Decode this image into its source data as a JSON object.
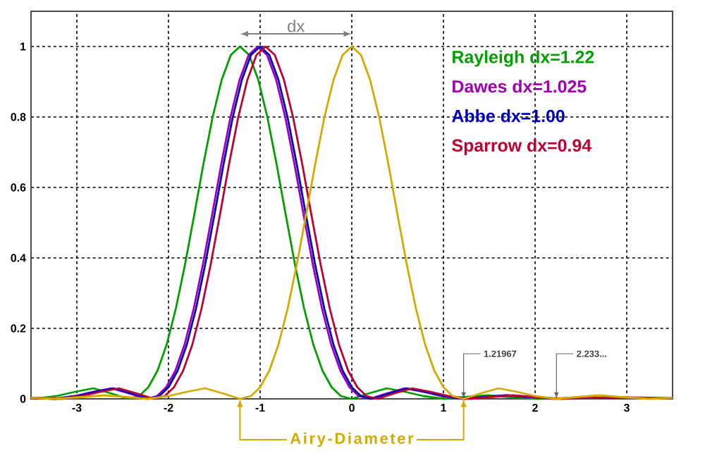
{
  "chart_data": {
    "type": "line",
    "xlim": [
      -3.5,
      3.5
    ],
    "ylim": [
      0,
      1.1
    ],
    "xticks": [
      -3,
      -2,
      -1,
      0,
      1,
      2,
      3
    ],
    "yticks": [
      0,
      0.2,
      0.4,
      0.6,
      0.8,
      1
    ],
    "grid": true,
    "legend": "top right",
    "series": [
      {
        "name": "Rayleigh dx=1.22",
        "color": "#00a000",
        "x": [
          -3.5,
          -3.45,
          -3.22,
          -3.02,
          -2.82,
          -2.62,
          -2.44,
          -2.32,
          -2.22,
          -2.12,
          -2.02,
          -1.92,
          -1.82,
          -1.72,
          -1.62,
          -1.52,
          -1.42,
          -1.32,
          -1.22,
          -1.12,
          -1.02,
          -0.92,
          -0.82,
          -0.72,
          -0.62,
          -0.52,
          -0.42,
          -0.32,
          -0.22,
          -0.12,
          0,
          0.18,
          0.38,
          0.58,
          0.78,
          1.01,
          1.23,
          1.48,
          1.73,
          2.02,
          2.5
        ],
        "values": [
          0.003,
          0,
          0.008,
          0.02,
          0.03,
          0.015,
          0,
          0.008,
          0.033,
          0.08,
          0.154,
          0.256,
          0.381,
          0.521,
          0.665,
          0.798,
          0.905,
          0.976,
          1,
          0.976,
          0.905,
          0.798,
          0.665,
          0.521,
          0.381,
          0.256,
          0.154,
          0.08,
          0.033,
          0.008,
          0,
          0.015,
          0.03,
          0.02,
          0.008,
          0,
          0.005,
          0.01,
          0.005,
          0,
          0.003
        ]
      },
      {
        "name": "Dawes dx=1.025",
        "color": "#a000b0",
        "x": [
          -3.5,
          -3.255,
          -3.025,
          -2.825,
          -2.625,
          -2.425,
          -2.245,
          -2.125,
          -2.025,
          -1.925,
          -1.825,
          -1.725,
          -1.625,
          -1.525,
          -1.425,
          -1.325,
          -1.225,
          -1.125,
          -1.025,
          -0.925,
          -0.825,
          -0.725,
          -0.625,
          -0.525,
          -0.425,
          -0.325,
          -0.225,
          -0.125,
          -0.025,
          0.075,
          0.195,
          0.375,
          0.575,
          0.775,
          0.975,
          1.205,
          1.425,
          1.675,
          1.925,
          2.215,
          2.5
        ],
        "values": [
          0.003,
          0,
          0.008,
          0.02,
          0.03,
          0.015,
          0,
          0.008,
          0.033,
          0.08,
          0.154,
          0.256,
          0.381,
          0.521,
          0.665,
          0.798,
          0.905,
          0.976,
          1,
          0.976,
          0.905,
          0.798,
          0.665,
          0.521,
          0.381,
          0.256,
          0.154,
          0.08,
          0.033,
          0.008,
          0,
          0.015,
          0.03,
          0.02,
          0.008,
          0,
          0.005,
          0.01,
          0.005,
          0,
          0.003
        ]
      },
      {
        "name": "Abbe dx=1.00",
        "color": "#0000c0",
        "x": [
          -3.5,
          -3.23,
          -3.0,
          -2.8,
          -2.6,
          -2.4,
          -2.22,
          -2.1,
          -2.0,
          -1.9,
          -1.8,
          -1.7,
          -1.6,
          -1.5,
          -1.4,
          -1.3,
          -1.2,
          -1.1,
          -1.0,
          -0.9,
          -0.8,
          -0.7,
          -0.6,
          -0.5,
          -0.4,
          -0.3,
          -0.2,
          -0.1,
          0,
          0.1,
          0.22,
          0.4,
          0.6,
          0.8,
          1.0,
          1.23,
          1.45,
          1.7,
          1.95
        ],
        "values": [
          0.003,
          0,
          0.008,
          0.02,
          0.03,
          0.015,
          0,
          0.008,
          0.033,
          0.08,
          0.154,
          0.256,
          0.381,
          0.521,
          0.665,
          0.798,
          0.905,
          0.976,
          1,
          0.976,
          0.905,
          0.798,
          0.665,
          0.521,
          0.381,
          0.256,
          0.154,
          0.08,
          0.033,
          0.008,
          0,
          0.015,
          0.03,
          0.02,
          0.008,
          0,
          0.005,
          0.01,
          0.005
        ]
      },
      {
        "name": "Sparrow dx=0.94",
        "color": "#c00030",
        "x": [
          -3.5,
          -3.17,
          -2.94,
          -2.74,
          -2.54,
          -2.34,
          -2.16,
          -2.04,
          -1.94,
          -1.84,
          -1.74,
          -1.64,
          -1.54,
          -1.44,
          -1.34,
          -1.24,
          -1.14,
          -1.04,
          -0.94,
          -0.84,
          -0.74,
          -0.64,
          -0.54,
          -0.44,
          -0.34,
          -0.24,
          -0.14,
          -0.04,
          0.06,
          0.16,
          0.28,
          0.46,
          0.66,
          0.86,
          1.06,
          1.29,
          1.51,
          1.76,
          2.01,
          2.3,
          2.5,
          3.0,
          3.5
        ],
        "values": [
          0.003,
          0,
          0.008,
          0.02,
          0.03,
          0.015,
          0,
          0.008,
          0.033,
          0.08,
          0.154,
          0.256,
          0.381,
          0.521,
          0.665,
          0.798,
          0.905,
          0.976,
          1,
          0.976,
          0.905,
          0.798,
          0.665,
          0.521,
          0.381,
          0.256,
          0.154,
          0.08,
          0.033,
          0.008,
          0,
          0.015,
          0.03,
          0.02,
          0.008,
          0,
          0.005,
          0.01,
          0.005,
          0,
          0.003,
          0.004,
          0.002
        ]
      },
      {
        "color": "#d4aa00",
        "x": [
          -3.5,
          -3.24,
          -2.95,
          -2.7,
          -2.45,
          -2.23,
          -2.0,
          -1.8,
          -1.6,
          -1.4,
          -1.22,
          -1.1,
          -1.0,
          -0.9,
          -0.8,
          -0.7,
          -0.6,
          -0.5,
          -0.4,
          -0.3,
          -0.2,
          -0.1,
          0,
          0.1,
          0.2,
          0.3,
          0.4,
          0.5,
          0.6,
          0.7,
          0.8,
          0.9,
          1.0,
          1.1,
          1.22,
          1.4,
          1.6,
          1.8,
          2.0,
          2.23,
          2.45,
          2.7,
          2.95,
          3.24,
          3.5
        ],
        "values": [
          0.003,
          0,
          0.005,
          0.01,
          0.005,
          0,
          0.008,
          0.02,
          0.03,
          0.015,
          0,
          0.008,
          0.033,
          0.08,
          0.154,
          0.256,
          0.381,
          0.521,
          0.665,
          0.798,
          0.905,
          0.976,
          1,
          0.976,
          0.905,
          0.798,
          0.665,
          0.521,
          0.381,
          0.256,
          0.154,
          0.08,
          0.033,
          0.008,
          0,
          0.015,
          0.03,
          0.02,
          0.008,
          0,
          0.005,
          0.01,
          0.005,
          0,
          0.003
        ]
      }
    ],
    "annotations": [
      "dx",
      {
        "text": "1.21967",
        "x": 1.22,
        "y": 0
      },
      {
        "text": "2.233...",
        "x": 2.233,
        "y": 0
      },
      "Airy-Diameter"
    ]
  }
}
